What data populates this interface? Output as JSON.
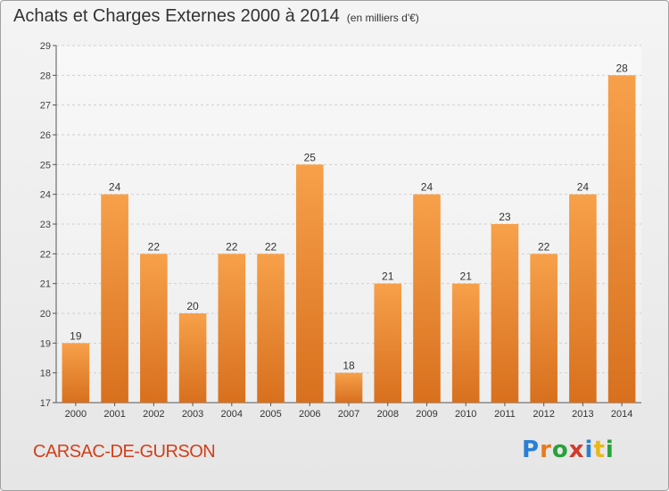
{
  "header": {
    "title": "Achats et Charges Externes 2000 à 2014",
    "subtitle": "(en milliers d'€)"
  },
  "footer": {
    "commune": "CARSAC-DE-GURSON",
    "logo_text": "Proxiti",
    "logo_letters": [
      {
        "ch": "P",
        "color": "#2a7fd4"
      },
      {
        "ch": "r",
        "color": "#e87a1a"
      },
      {
        "ch": "o",
        "color": "#2aa03a"
      },
      {
        "ch": "x",
        "color": "#d43a2a"
      },
      {
        "ch": "i",
        "color": "#2a7fd4"
      },
      {
        "ch": "t",
        "color": "#e8b81a"
      },
      {
        "ch": "i",
        "color": "#2aa03a"
      }
    ]
  },
  "chart_data": {
    "type": "bar",
    "title": "Achats et Charges Externes 2000 à 2014",
    "subtitle": "(en milliers d'€)",
    "xlabel": "",
    "ylabel": "",
    "categories": [
      "2000",
      "2001",
      "2002",
      "2003",
      "2004",
      "2005",
      "2006",
      "2007",
      "2008",
      "2009",
      "2010",
      "2011",
      "2012",
      "2013",
      "2014"
    ],
    "values": [
      19,
      24,
      22,
      20,
      22,
      22,
      25,
      18,
      21,
      24,
      21,
      23,
      22,
      24,
      28
    ],
    "ylim": [
      17,
      29
    ],
    "yticks": [
      17,
      18,
      19,
      20,
      21,
      22,
      23,
      24,
      25,
      26,
      27,
      28,
      29
    ],
    "grid": true,
    "data_labels": true,
    "bar_color": "#f0923a"
  }
}
